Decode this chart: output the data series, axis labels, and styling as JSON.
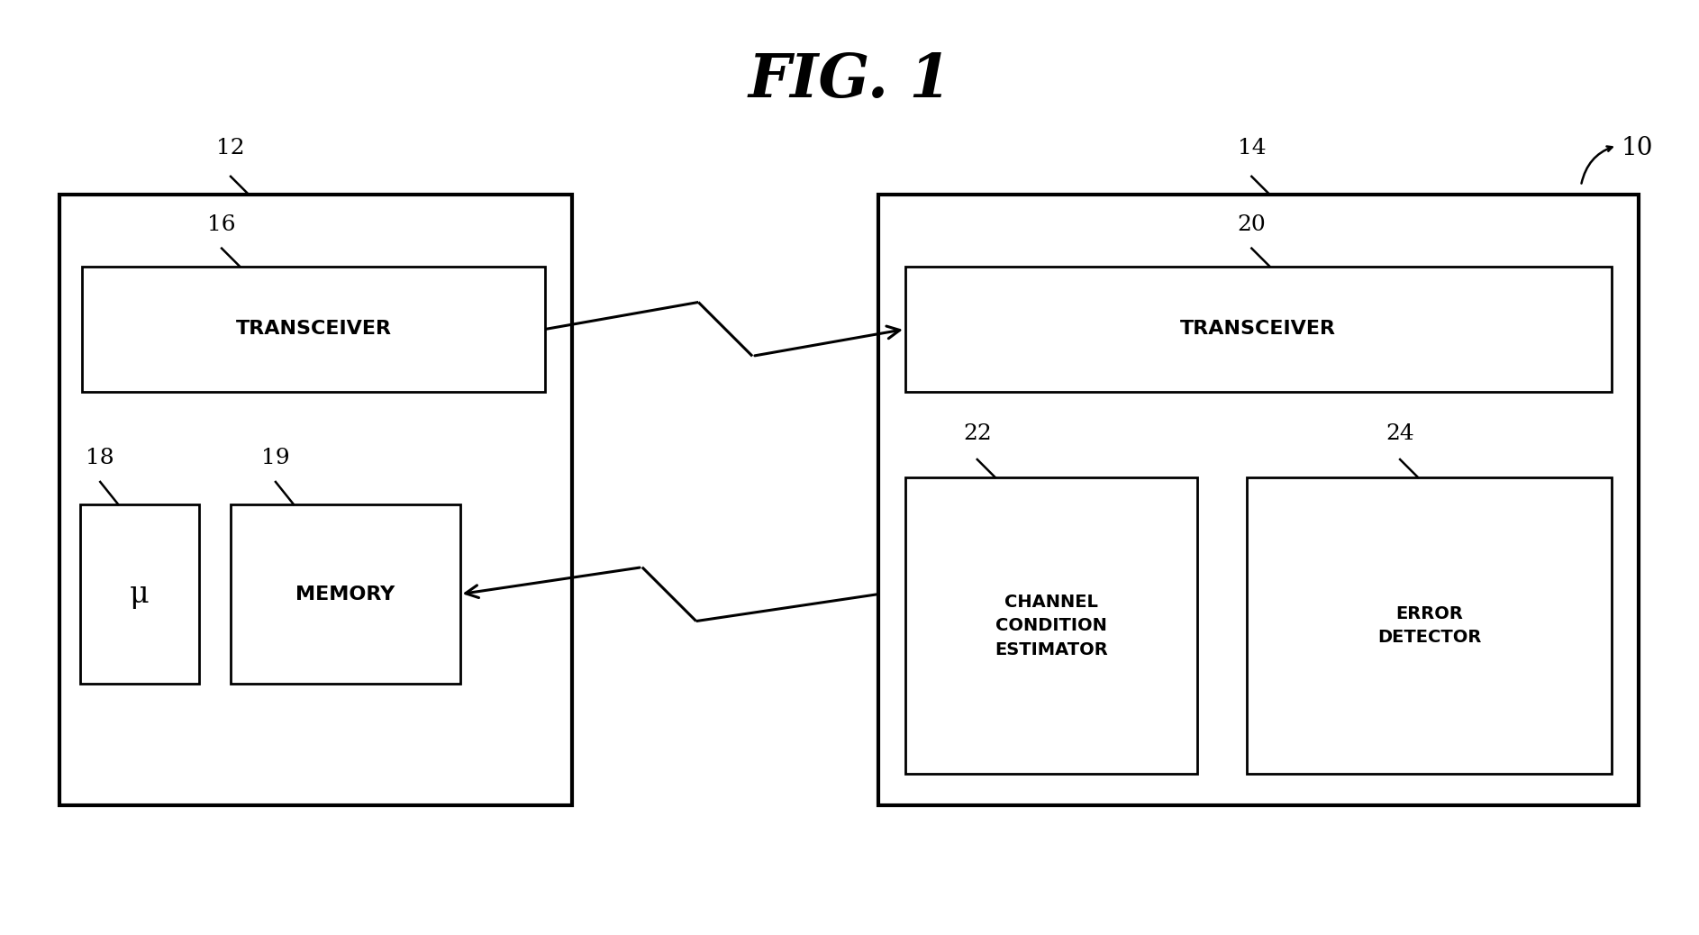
{
  "title": "FIG. 1",
  "bg_color": "#ffffff",
  "fig_label": "10",
  "box12_label": "12",
  "box14_label": "14",
  "box16_label": "16",
  "box18_label": "18",
  "box19_label": "19",
  "box20_label": "20",
  "box22_label": "22",
  "box24_label": "24",
  "transceiver_left_text": "TRANSCEIVER",
  "mu_text": "μ",
  "memory_text": "MEMORY",
  "transceiver_right_text": "TRANSCEIVER",
  "channel_text": "CHANNEL\nCONDITION\nESTIMATOR",
  "error_text": "ERROR\nDETECTOR"
}
